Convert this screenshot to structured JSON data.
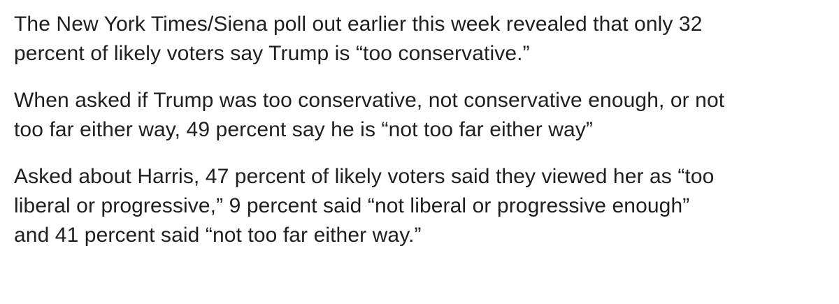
{
  "article": {
    "paragraphs": [
      {
        "lines": [
          "The New York Times/Siena poll out earlier this week revealed that only 32",
          "percent of likely voters say Trump is “too conservative.”"
        ]
      },
      {
        "lines": [
          "When asked if Trump was too conservative, not conservative enough, or not",
          "too far either way, 49 percent say he is “not too far either way”"
        ]
      },
      {
        "lines": [
          "Asked about Harris, 47 percent of likely voters said they viewed her as “too",
          "liberal or progressive,” 9 percent said “not liberal or progressive enough”",
          "and 41 percent said “not too far either way.”"
        ]
      }
    ]
  }
}
